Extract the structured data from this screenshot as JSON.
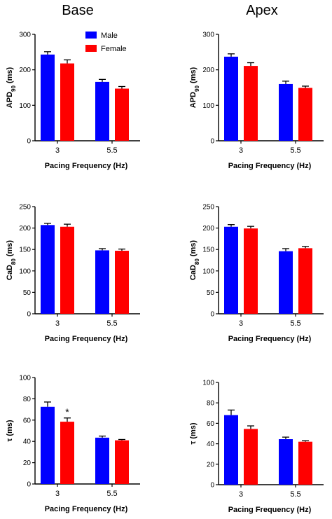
{
  "column_titles": [
    "Base",
    "Apex"
  ],
  "legend": {
    "entries": [
      {
        "name": "Male",
        "color": "#0000ff"
      },
      {
        "name": "Female",
        "color": "#ff0000"
      }
    ],
    "placement": "top-right of first panel"
  },
  "colors": {
    "male": "#0000ff",
    "female": "#ff0000",
    "axis": "#000000"
  },
  "chart_data": [
    {
      "id": "base-apd",
      "type": "bar",
      "column": "Base",
      "categories": [
        "3",
        "5.5"
      ],
      "series": [
        {
          "name": "Male",
          "values": [
            243,
            166
          ],
          "errors": [
            8,
            7
          ]
        },
        {
          "name": "Female",
          "values": [
            218,
            147
          ],
          "errors": [
            10,
            6
          ]
        }
      ],
      "ylabel": {
        "main": "APD",
        "sub": "90",
        "unit": " (ms)"
      },
      "xlabel": "Pacing Frequency (Hz)",
      "ylim": [
        0,
        300
      ],
      "yticks": [
        0,
        100,
        200,
        300
      ],
      "grid": false,
      "annotations": []
    },
    {
      "id": "apex-apd",
      "type": "bar",
      "column": "Apex",
      "categories": [
        "3",
        "5.5"
      ],
      "series": [
        {
          "name": "Male",
          "values": [
            237,
            160
          ],
          "errors": [
            8,
            8
          ]
        },
        {
          "name": "Female",
          "values": [
            211,
            149
          ],
          "errors": [
            9,
            5
          ]
        }
      ],
      "ylabel": {
        "main": "APD",
        "sub": "90",
        "unit": " (ms)"
      },
      "xlabel": "Pacing Frequency (Hz)",
      "ylim": [
        0,
        300
      ],
      "yticks": [
        0,
        100,
        200,
        300
      ],
      "grid": false,
      "annotations": []
    },
    {
      "id": "base-cad",
      "type": "bar",
      "column": "Base",
      "categories": [
        "3",
        "5.5"
      ],
      "series": [
        {
          "name": "Male",
          "values": [
            207,
            148
          ],
          "errors": [
            4,
            4
          ]
        },
        {
          "name": "Female",
          "values": [
            203,
            147
          ],
          "errors": [
            6,
            4
          ]
        }
      ],
      "ylabel": {
        "main": "CaD",
        "sub": "80",
        "unit": " (ms)"
      },
      "xlabel": "Pacing Frequency (Hz)",
      "ylim": [
        0,
        250
      ],
      "yticks": [
        0,
        50,
        100,
        150,
        200,
        250
      ],
      "grid": false,
      "annotations": []
    },
    {
      "id": "apex-cad",
      "type": "bar",
      "column": "Apex",
      "categories": [
        "3",
        "5.5"
      ],
      "series": [
        {
          "name": "Male",
          "values": [
            203,
            146
          ],
          "errors": [
            5,
            6
          ]
        },
        {
          "name": "Female",
          "values": [
            199,
            153
          ],
          "errors": [
            5,
            4
          ]
        }
      ],
      "ylabel": {
        "main": "CaD",
        "sub": "80",
        "unit": " (ms)"
      },
      "xlabel": "Pacing Frequency (Hz)",
      "ylim": [
        0,
        250
      ],
      "yticks": [
        0,
        50,
        100,
        150,
        200,
        250
      ],
      "grid": false,
      "annotations": []
    },
    {
      "id": "base-tau",
      "type": "bar",
      "column": "Base",
      "categories": [
        "3",
        "5.5"
      ],
      "series": [
        {
          "name": "Male",
          "values": [
            72.5,
            43.5
          ],
          "errors": [
            4.5,
            1.5
          ]
        },
        {
          "name": "Female",
          "values": [
            58.5,
            41
          ],
          "errors": [
            3.5,
            0.8
          ]
        }
      ],
      "ylabel": {
        "main": "τ",
        "sub": "",
        "unit": " (ms)"
      },
      "xlabel": "Pacing Frequency (Hz)",
      "ylim": [
        0,
        100
      ],
      "yticks": [
        0,
        20,
        40,
        60,
        80,
        100
      ],
      "grid": false,
      "annotations": [
        {
          "text": "*",
          "category": 0,
          "series": 1
        }
      ]
    },
    {
      "id": "apex-tau",
      "type": "bar",
      "column": "Apex",
      "categories": [
        "3",
        "5.5"
      ],
      "series": [
        {
          "name": "Male",
          "values": [
            68,
            44.5
          ],
          "errors": [
            5,
            2
          ]
        },
        {
          "name": "Female",
          "values": [
            54.5,
            42
          ],
          "errors": [
            3,
            1
          ]
        }
      ],
      "ylabel": {
        "main": "τ",
        "sub": "",
        "unit": " (ms)"
      },
      "xlabel": "Pacing Frequency (Hz)",
      "ylim": [
        0,
        100
      ],
      "yticks": [
        0,
        20,
        40,
        60,
        80,
        100
      ],
      "grid": false,
      "annotations": []
    }
  ]
}
